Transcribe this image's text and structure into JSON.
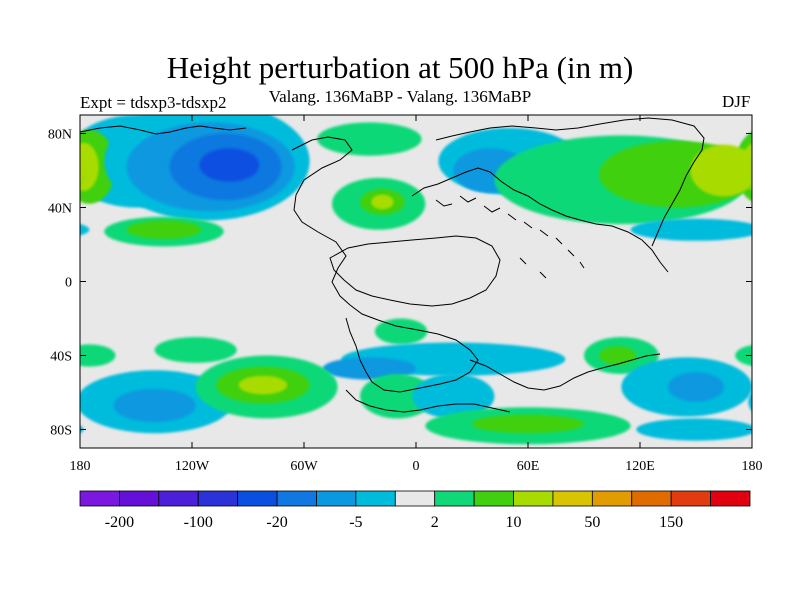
{
  "title": "Height perturbation at 500 hPa (in m)",
  "subtitle": "Valang. 136MaBP - Valang. 136MaBP",
  "experiment": "Expt = tdsxp3-tdsxp2",
  "season": "DJF",
  "map": {
    "lon_range": [
      -180,
      180
    ],
    "lat_range": [
      -90,
      90
    ],
    "x_ticks": [
      {
        "lon": -180,
        "label": "180"
      },
      {
        "lon": -120,
        "label": "120W"
      },
      {
        "lon": -60,
        "label": "60W"
      },
      {
        "lon": 0,
        "label": "0"
      },
      {
        "lon": 60,
        "label": "60E"
      },
      {
        "lon": 120,
        "label": "120E"
      },
      {
        "lon": 180,
        "label": "180"
      }
    ],
    "y_ticks": [
      {
        "lat": 80,
        "label": "80N"
      },
      {
        "lat": 40,
        "label": "40N"
      },
      {
        "lat": 0,
        "label": "0"
      },
      {
        "lat": -40,
        "label": "40S"
      },
      {
        "lat": -80,
        "label": "80S"
      }
    ],
    "background_color": "#e8e8e8"
  },
  "colorbar": {
    "colors": [
      "#7a18e0",
      "#6410d8",
      "#4a20d8",
      "#2a32d8",
      "#0a50e0",
      "#1078e0",
      "#0a98e0",
      "#00bcdc",
      "#e8e8e8",
      "#10d878",
      "#40d010",
      "#a8dc00",
      "#d8c400",
      "#e09c00",
      "#e06c00",
      "#e03c10",
      "#e00010"
    ],
    "labels": [
      {
        "after_index": 0,
        "label": "-200"
      },
      {
        "after_index": 2,
        "label": "-100"
      },
      {
        "after_index": 4,
        "label": "-20"
      },
      {
        "after_index": 6,
        "label": "-5"
      },
      {
        "after_index": 8,
        "label": "2"
      },
      {
        "after_index": 10,
        "label": "10"
      },
      {
        "after_index": 12,
        "label": "50"
      },
      {
        "after_index": 14,
        "label": "150"
      }
    ]
  },
  "field_regions": [
    {
      "level": 7,
      "lon": -150,
      "lat": 65,
      "rlon": 38,
      "rlat": 25
    },
    {
      "level": 10,
      "lon": -175,
      "lat": 62,
      "rlon": 14,
      "rlat": 20
    },
    {
      "level": 11,
      "lon": -178,
      "lat": 62,
      "rlon": 8,
      "rlat": 13
    },
    {
      "level": 7,
      "lon": -112,
      "lat": 65,
      "rlon": 55,
      "rlat": 32
    },
    {
      "level": 6,
      "lon": -110,
      "lat": 62,
      "rlon": 45,
      "rlat": 24
    },
    {
      "level": 5,
      "lon": -102,
      "lat": 62,
      "rlon": 30,
      "rlat": 18
    },
    {
      "level": 4,
      "lon": -100,
      "lat": 63,
      "rlon": 16,
      "rlat": 9
    },
    {
      "level": 9,
      "lon": -135,
      "lat": 27,
      "rlon": 32,
      "rlat": 8
    },
    {
      "level": 10,
      "lon": -135,
      "lat": 28,
      "rlon": 20,
      "rlat": 5
    },
    {
      "level": 9,
      "lon": -20,
      "lat": 42,
      "rlon": 25,
      "rlat": 14
    },
    {
      "level": 10,
      "lon": -18,
      "lat": 43,
      "rlon": 12,
      "rlat": 7
    },
    {
      "level": 11,
      "lon": -18,
      "lat": 43,
      "rlon": 6,
      "rlat": 4
    },
    {
      "level": 9,
      "lon": -25,
      "lat": 77,
      "rlon": 28,
      "rlat": 9
    },
    {
      "level": 7,
      "lon": 50,
      "lat": 65,
      "rlon": 38,
      "rlat": 18
    },
    {
      "level": 6,
      "lon": 40,
      "lat": 60,
      "rlon": 20,
      "rlat": 12
    },
    {
      "level": 9,
      "lon": 110,
      "lat": 55,
      "rlon": 68,
      "rlat": 24
    },
    {
      "level": 10,
      "lon": 140,
      "lat": 58,
      "rlon": 42,
      "rlat": 18
    },
    {
      "level": 11,
      "lon": 165,
      "lat": 60,
      "rlon": 18,
      "rlat": 14
    },
    {
      "level": 7,
      "lon": 150,
      "lat": 28,
      "rlon": 35,
      "rlat": 6
    },
    {
      "level": 9,
      "lon": -8,
      "lat": -27,
      "rlon": 14,
      "rlat": 7
    },
    {
      "level": 9,
      "lon": -118,
      "lat": -37,
      "rlon": 22,
      "rlat": 7
    },
    {
      "level": 9,
      "lon": -175,
      "lat": -40,
      "rlon": 14,
      "rlat": 6
    },
    {
      "level": 9,
      "lon": 110,
      "lat": -40,
      "rlon": 20,
      "rlat": 10
    },
    {
      "level": 10,
      "lon": 108,
      "lat": -40,
      "rlon": 10,
      "rlat": 5
    },
    {
      "level": 7,
      "lon": 20,
      "lat": -42,
      "rlon": 60,
      "rlat": 9
    },
    {
      "level": 6,
      "lon": -25,
      "lat": -47,
      "rlon": 25,
      "rlat": 6
    },
    {
      "level": 7,
      "lon": -140,
      "lat": -65,
      "rlon": 42,
      "rlat": 17
    },
    {
      "level": 6,
      "lon": -140,
      "lat": -67,
      "rlon": 22,
      "rlat": 9
    },
    {
      "level": 9,
      "lon": -80,
      "lat": -57,
      "rlon": 38,
      "rlat": 17
    },
    {
      "level": 10,
      "lon": -82,
      "lat": -56,
      "rlon": 25,
      "rlat": 10
    },
    {
      "level": 11,
      "lon": -82,
      "lat": -56,
      "rlon": 13,
      "rlat": 5
    },
    {
      "level": 9,
      "lon": -10,
      "lat": -62,
      "rlon": 20,
      "rlat": 12
    },
    {
      "level": 7,
      "lon": 20,
      "lat": -62,
      "rlon": 22,
      "rlat": 12
    },
    {
      "level": 9,
      "lon": 60,
      "lat": -78,
      "rlon": 55,
      "rlat": 10
    },
    {
      "level": 10,
      "lon": 60,
      "lat": -77,
      "rlon": 30,
      "rlat": 5
    },
    {
      "level": 7,
      "lon": 145,
      "lat": -57,
      "rlon": 35,
      "rlat": 16
    },
    {
      "level": 6,
      "lon": 150,
      "lat": -57,
      "rlon": 15,
      "rlat": 8
    },
    {
      "level": 7,
      "lon": 150,
      "lat": -80,
      "rlon": 32,
      "rlat": 6
    }
  ]
}
